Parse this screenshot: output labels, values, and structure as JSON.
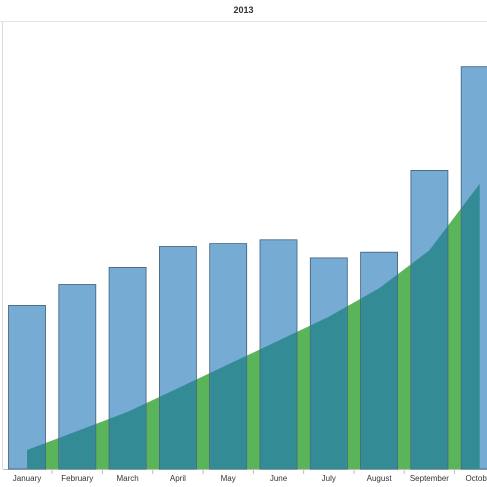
{
  "chart_data": {
    "type": "bar",
    "title": "2013",
    "xlabel": "",
    "ylabel": "",
    "categories": [
      "January",
      "February",
      "March",
      "April",
      "May",
      "June",
      "July",
      "August",
      "September",
      "October"
    ],
    "series": [
      {
        "type": "bar",
        "color": "#6fa6d2",
        "values": [
          172,
          194,
          212,
          234,
          237,
          241,
          222,
          228,
          314,
          423
        ]
      },
      {
        "type": "area",
        "color": "#5ab55a",
        "values": [
          20,
          40,
          60,
          85,
          110,
          135,
          160,
          190,
          230,
          300
        ]
      }
    ],
    "ylim": [
      0,
      470
    ],
    "grid": false,
    "legend": "none"
  }
}
